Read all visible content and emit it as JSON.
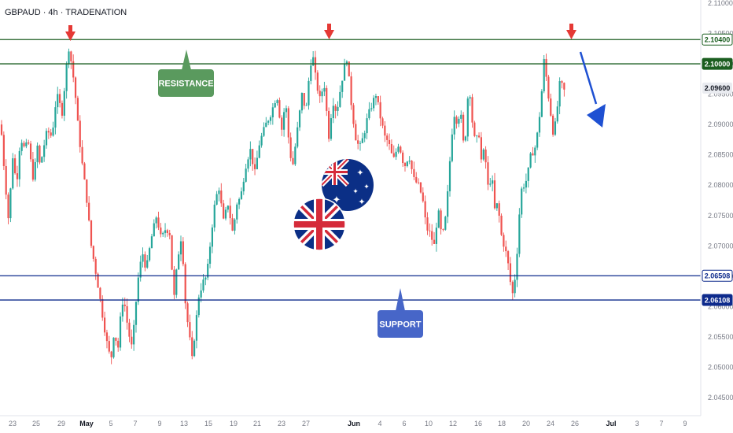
{
  "header": {
    "title": "GBPAUD · 4h · TRADENATION"
  },
  "chart_data": {
    "type": "candlestick",
    "symbol": "GBPAUD",
    "timeframe": "4h",
    "ylim": [
      2.0425,
      2.1115
    ],
    "y_ticks": [
      "2.11000",
      "2.10500",
      "2.10000",
      "2.09500",
      "2.09000",
      "2.08500",
      "2.08000",
      "2.07500",
      "2.07000",
      "2.06500",
      "2.06000",
      "2.05500",
      "2.05000",
      "2.04500"
    ],
    "x_ticks": [
      {
        "label": "23",
        "bold": false
      },
      {
        "label": "25",
        "bold": false
      },
      {
        "label": "29",
        "bold": false
      },
      {
        "label": "May",
        "bold": true
      },
      {
        "label": "5",
        "bold": false
      },
      {
        "label": "7",
        "bold": false
      },
      {
        "label": "9",
        "bold": false
      },
      {
        "label": "13",
        "bold": false
      },
      {
        "label": "15",
        "bold": false
      },
      {
        "label": "19",
        "bold": false
      },
      {
        "label": "21",
        "bold": false
      },
      {
        "label": "23",
        "bold": false
      },
      {
        "label": "27",
        "bold": false
      },
      {
        "label": "Jun",
        "bold": true
      },
      {
        "label": "4",
        "bold": false
      },
      {
        "label": "6",
        "bold": false
      },
      {
        "label": "10",
        "bold": false
      },
      {
        "label": "12",
        "bold": false
      },
      {
        "label": "16",
        "bold": false
      },
      {
        "label": "18",
        "bold": false
      },
      {
        "label": "20",
        "bold": false
      },
      {
        "label": "24",
        "bold": false
      },
      {
        "label": "26",
        "bold": false
      },
      {
        "label": "Jul",
        "bold": true
      },
      {
        "label": "3",
        "bold": false
      },
      {
        "label": "7",
        "bold": false
      },
      {
        "label": "9",
        "bold": false
      }
    ],
    "price_path": [
      [
        2.09,
        1
      ],
      [
        2.0815,
        6
      ],
      [
        2.074,
        11
      ],
      [
        2.085,
        16
      ],
      [
        2.08,
        21
      ],
      [
        2.088,
        26
      ],
      [
        2.086,
        31
      ],
      [
        2.087,
        36
      ],
      [
        2.083,
        40
      ],
      [
        2.0805,
        43
      ],
      [
        2.087,
        47
      ],
      [
        2.083,
        51
      ],
      [
        2.086,
        55
      ],
      [
        2.089,
        60
      ],
      [
        2.088,
        66
      ],
      [
        2.095,
        72
      ],
      [
        2.092,
        79
      ],
      [
        2.0975,
        83
      ],
      [
        2.103,
        87
      ],
      [
        2.1,
        91
      ],
      [
        2.096,
        95
      ],
      [
        2.09,
        99
      ],
      [
        2.084,
        104
      ],
      [
        2.078,
        110
      ],
      [
        2.07,
        116
      ],
      [
        2.064,
        124
      ],
      [
        2.058,
        131
      ],
      [
        2.054,
        136
      ],
      [
        2.051,
        141
      ],
      [
        2.056,
        145
      ],
      [
        2.053,
        150
      ],
      [
        2.061,
        155
      ],
      [
        2.06,
        159
      ],
      [
        2.056,
        163
      ],
      [
        2.053,
        168
      ],
      [
        2.064,
        175
      ],
      [
        2.069,
        181
      ],
      [
        2.066,
        186
      ],
      [
        2.071,
        192
      ],
      [
        2.075,
        199
      ],
      [
        2.071,
        205
      ],
      [
        2.073,
        211
      ],
      [
        2.072,
        216
      ],
      [
        2.061,
        221
      ],
      [
        2.068,
        226
      ],
      [
        2.072,
        231
      ],
      [
        2.06,
        236
      ],
      [
        2.055,
        241
      ],
      [
        2.051,
        244
      ],
      [
        2.056,
        248
      ],
      [
        2.062,
        253
      ],
      [
        2.064,
        258
      ],
      [
        2.065,
        263
      ],
      [
        2.07,
        267
      ],
      [
        2.076,
        272
      ],
      [
        2.08,
        278
      ],
      [
        2.074,
        284
      ],
      [
        2.077,
        290
      ],
      [
        2.072,
        296
      ],
      [
        2.077,
        301
      ],
      [
        2.078,
        306
      ],
      [
        2.083,
        312
      ],
      [
        2.086,
        318
      ],
      [
        2.082,
        324
      ],
      [
        2.087,
        330
      ],
      [
        2.09,
        338
      ],
      [
        2.092,
        345
      ],
      [
        2.095,
        352
      ],
      [
        2.089,
        358
      ],
      [
        2.094,
        363
      ],
      [
        2.086,
        368
      ],
      [
        2.083,
        372
      ],
      [
        2.089,
        378
      ],
      [
        2.095,
        384
      ],
      [
        2.092,
        389
      ],
      [
        2.098,
        393
      ],
      [
        2.102,
        397
      ],
      [
        2.097,
        402
      ],
      [
        2.094,
        407
      ],
      [
        2.097,
        412
      ],
      [
        2.088,
        418
      ],
      [
        2.094,
        423
      ],
      [
        2.092,
        428
      ],
      [
        2.096,
        433
      ],
      [
        2.099,
        437
      ],
      [
        2.101,
        441
      ],
      [
        2.093,
        447
      ],
      [
        2.088,
        452
      ],
      [
        2.086,
        457
      ],
      [
        2.088,
        462
      ],
      [
        2.091,
        467
      ],
      [
        2.093,
        472
      ],
      [
        2.095,
        478
      ],
      [
        2.091,
        484
      ],
      [
        2.088,
        489
      ],
      [
        2.087,
        494
      ],
      [
        2.084,
        500
      ],
      [
        2.087,
        507
      ],
      [
        2.083,
        514
      ],
      [
        2.085,
        520
      ],
      [
        2.081,
        526
      ],
      [
        2.08,
        532
      ],
      [
        2.078,
        537
      ],
      [
        2.073,
        542
      ],
      [
        2.072,
        547
      ],
      [
        2.07,
        552
      ],
      [
        2.076,
        557
      ],
      [
        2.071,
        562
      ],
      [
        2.075,
        567
      ],
      [
        2.08,
        570
      ],
      [
        2.088,
        574
      ],
      [
        2.092,
        578
      ],
      [
        2.09,
        582
      ],
      [
        2.093,
        585
      ],
      [
        2.087,
        589
      ],
      [
        2.089,
        593
      ],
      [
        2.098,
        596
      ],
      [
        2.091,
        600
      ],
      [
        2.086,
        605
      ],
      [
        2.09,
        608
      ],
      [
        2.084,
        612
      ],
      [
        2.086,
        616
      ],
      [
        2.079,
        621
      ],
      [
        2.082,
        625
      ],
      [
        2.076,
        629
      ],
      [
        2.077,
        633
      ],
      [
        2.072,
        637
      ],
      [
        2.07,
        641
      ],
      [
        2.068,
        645
      ],
      [
        2.064,
        649
      ],
      [
        2.062,
        652
      ],
      [
        2.065,
        655
      ],
      [
        2.07,
        658
      ],
      [
        2.079,
        662
      ],
      [
        2.08,
        666
      ],
      [
        2.081,
        670
      ],
      [
        2.085,
        675
      ],
      [
        2.086,
        680
      ],
      [
        2.089,
        684
      ],
      [
        2.094,
        688
      ],
      [
        2.101,
        692
      ],
      [
        2.096,
        696
      ],
      [
        2.092,
        700
      ],
      [
        2.088,
        704
      ],
      [
        2.092,
        708
      ],
      [
        2.097,
        712
      ],
      [
        2.096,
        716
      ],
      [
        2.095,
        719
      ]
    ],
    "levels": [
      {
        "price": 2.104,
        "label": "2.10400",
        "color": "#1b5e20",
        "style": "outline"
      },
      {
        "price": 2.1,
        "label": "2.10000",
        "color": "#1b5e20",
        "style": "filled"
      },
      {
        "price": 2.06508,
        "label": "2.06508",
        "color": "#0d2a8c",
        "style": "outline"
      },
      {
        "price": 2.06108,
        "label": "2.06108",
        "color": "#0d2a8c",
        "style": "filled"
      }
    ],
    "last_price": {
      "price": 2.096,
      "label": "2.09600"
    },
    "annotations": {
      "resistance_label": "RESISTANCE",
      "support_label": "SUPPORT",
      "resistance_color": "#5a9a5e",
      "support_color": "#4766c8",
      "top_arrows_color": "#e53935",
      "forecast_arrow_color": "#1e50d2"
    }
  },
  "colors": {
    "bull": "#26a69a",
    "bear": "#ef5350",
    "grid": "#f0f3fa",
    "axis_text": "#787b86"
  }
}
